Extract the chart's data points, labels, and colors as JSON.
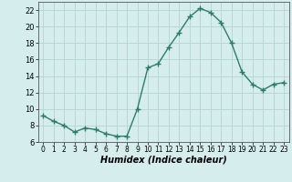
{
  "x": [
    0,
    1,
    2,
    3,
    4,
    5,
    6,
    7,
    8,
    9,
    10,
    11,
    12,
    13,
    14,
    15,
    16,
    17,
    18,
    19,
    20,
    21,
    22,
    23
  ],
  "y": [
    9.2,
    8.5,
    8.0,
    7.2,
    7.7,
    7.5,
    7.0,
    6.7,
    6.7,
    10.0,
    15.0,
    15.5,
    17.5,
    19.3,
    21.2,
    22.2,
    21.7,
    20.5,
    18.0,
    14.5,
    13.0,
    12.3,
    13.0,
    13.2
  ],
  "xlabel": "Humidex (Indice chaleur)",
  "line_color": "#2e7b6e",
  "marker_color": "#2e7b6e",
  "bg_color": "#d5eeed",
  "grid_color": "#b8d8d4",
  "xlim": [
    -0.5,
    23.5
  ],
  "ylim": [
    6,
    23
  ],
  "yticks": [
    6,
    8,
    10,
    12,
    14,
    16,
    18,
    20,
    22
  ],
  "ytick_labels": [
    "6",
    "8",
    "10",
    "12",
    "14",
    "16",
    "18",
    "20",
    "22"
  ],
  "xtick_positions": [
    0,
    1,
    2,
    3,
    4,
    5,
    6,
    7,
    8,
    9,
    10,
    11,
    12,
    13,
    14,
    15,
    16,
    17,
    18,
    19,
    20,
    21,
    22,
    23
  ],
  "xtick_labels": [
    "0",
    "1",
    "2",
    "3",
    "4",
    "5",
    "6",
    "7",
    "8",
    "9",
    "10",
    "11",
    "12",
    "13",
    "14",
    "15",
    "16",
    "17",
    "18",
    "19",
    "20",
    "21",
    "22",
    "23"
  ]
}
